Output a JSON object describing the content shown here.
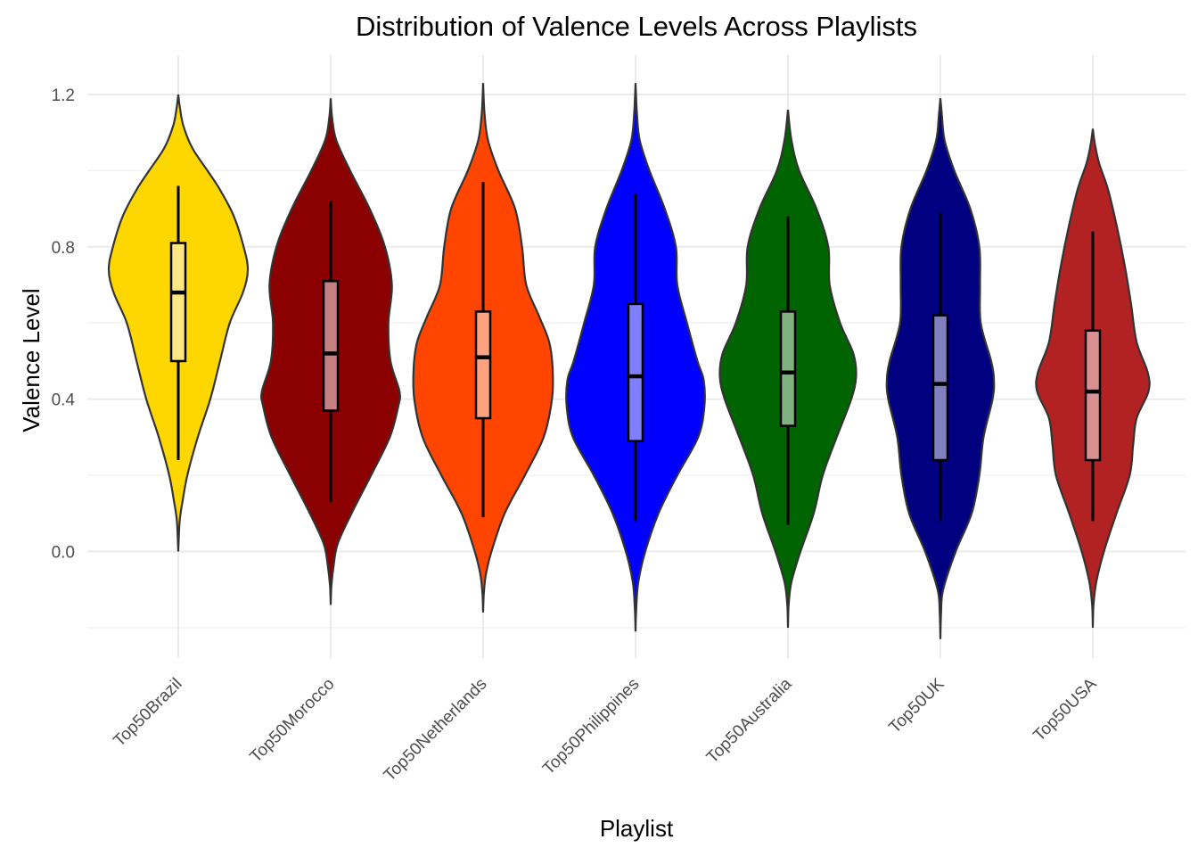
{
  "chart_data": {
    "type": "violin",
    "title": "Distribution of Valence Levels Across Playlists",
    "xlabel": "Playlist",
    "ylabel": "Valence Level",
    "ylim": [
      -0.27,
      1.3
    ],
    "yticks": [
      0.0,
      0.4,
      0.8,
      1.2
    ],
    "ytick_labels": [
      "0.0",
      "0.4",
      "0.8",
      "1.2"
    ],
    "grid": true,
    "legend": "none",
    "categories": [
      "Top50Brazil",
      "Top50Morocco",
      "Top50Netherlands",
      "Top50Philippines",
      "Top50Australia",
      "Top50UK",
      "Top50USA"
    ],
    "series": [
      {
        "category": "Top50Brazil",
        "color": "#FFD700",
        "box_color": "#FFE680",
        "min": 0.0,
        "max": 1.2,
        "whisker_low": 0.24,
        "q1": 0.5,
        "median": 0.68,
        "q3": 0.81,
        "whisker_high": 0.96,
        "density": [
          [
            0.0,
            0.0
          ],
          [
            0.08,
            0.02
          ],
          [
            0.13,
            0.06
          ],
          [
            0.2,
            0.13
          ],
          [
            0.3,
            0.28
          ],
          [
            0.4,
            0.46
          ],
          [
            0.5,
            0.6
          ],
          [
            0.6,
            0.74
          ],
          [
            0.68,
            0.93
          ],
          [
            0.74,
            1.0
          ],
          [
            0.8,
            0.94
          ],
          [
            0.88,
            0.8
          ],
          [
            0.95,
            0.6
          ],
          [
            1.0,
            0.42
          ],
          [
            1.06,
            0.2
          ],
          [
            1.12,
            0.07
          ],
          [
            1.17,
            0.02
          ],
          [
            1.2,
            0.0
          ]
        ]
      },
      {
        "category": "Top50Morocco",
        "color": "#8B0000",
        "box_color": "#C58080",
        "min": -0.14,
        "max": 1.19,
        "whisker_low": 0.13,
        "q1": 0.37,
        "median": 0.52,
        "q3": 0.71,
        "whisker_high": 0.92,
        "density": [
          [
            -0.14,
            0.0
          ],
          [
            -0.09,
            0.01
          ],
          [
            -0.04,
            0.04
          ],
          [
            0.02,
            0.1
          ],
          [
            0.1,
            0.3
          ],
          [
            0.2,
            0.58
          ],
          [
            0.3,
            0.85
          ],
          [
            0.38,
            0.97
          ],
          [
            0.42,
            0.99
          ],
          [
            0.5,
            0.86
          ],
          [
            0.6,
            0.83
          ],
          [
            0.7,
            0.88
          ],
          [
            0.8,
            0.78
          ],
          [
            0.9,
            0.56
          ],
          [
            1.0,
            0.28
          ],
          [
            1.08,
            0.08
          ],
          [
            1.14,
            0.02
          ],
          [
            1.19,
            0.0
          ]
        ]
      },
      {
        "category": "Top50Netherlands",
        "color": "#FF4500",
        "box_color": "#FFA280",
        "min": -0.16,
        "max": 1.23,
        "whisker_low": 0.09,
        "q1": 0.35,
        "median": 0.51,
        "q3": 0.63,
        "whisker_high": 0.97,
        "density": [
          [
            -0.16,
            0.0
          ],
          [
            -0.11,
            0.01
          ],
          [
            -0.06,
            0.04
          ],
          [
            0.0,
            0.12
          ],
          [
            0.1,
            0.31
          ],
          [
            0.2,
            0.6
          ],
          [
            0.3,
            0.87
          ],
          [
            0.4,
            0.99
          ],
          [
            0.48,
            1.0
          ],
          [
            0.55,
            0.95
          ],
          [
            0.62,
            0.8
          ],
          [
            0.7,
            0.62
          ],
          [
            0.8,
            0.56
          ],
          [
            0.9,
            0.46
          ],
          [
            1.0,
            0.22
          ],
          [
            1.08,
            0.07
          ],
          [
            1.15,
            0.02
          ],
          [
            1.23,
            0.0
          ]
        ]
      },
      {
        "category": "Top50Philippines",
        "color": "#0000FF",
        "box_color": "#8080FF",
        "min": -0.21,
        "max": 1.23,
        "whisker_low": 0.08,
        "q1": 0.29,
        "median": 0.46,
        "q3": 0.65,
        "whisker_high": 0.94,
        "density": [
          [
            -0.21,
            0.0
          ],
          [
            -0.15,
            0.01
          ],
          [
            -0.08,
            0.04
          ],
          [
            0.0,
            0.14
          ],
          [
            0.1,
            0.33
          ],
          [
            0.2,
            0.6
          ],
          [
            0.3,
            0.9
          ],
          [
            0.38,
            0.99
          ],
          [
            0.45,
            0.98
          ],
          [
            0.5,
            0.89
          ],
          [
            0.6,
            0.74
          ],
          [
            0.7,
            0.6
          ],
          [
            0.8,
            0.58
          ],
          [
            0.9,
            0.42
          ],
          [
            1.0,
            0.2
          ],
          [
            1.08,
            0.06
          ],
          [
            1.15,
            0.02
          ],
          [
            1.23,
            0.0
          ]
        ]
      },
      {
        "category": "Top50Australia",
        "color": "#006400",
        "box_color": "#80B180",
        "min": -0.2,
        "max": 1.16,
        "whisker_low": 0.07,
        "q1": 0.33,
        "median": 0.47,
        "q3": 0.63,
        "whisker_high": 0.88,
        "density": [
          [
            -0.2,
            0.0
          ],
          [
            -0.14,
            0.01
          ],
          [
            -0.08,
            0.05
          ],
          [
            0.0,
            0.18
          ],
          [
            0.1,
            0.37
          ],
          [
            0.2,
            0.5
          ],
          [
            0.3,
            0.7
          ],
          [
            0.4,
            0.91
          ],
          [
            0.46,
            0.98
          ],
          [
            0.52,
            0.94
          ],
          [
            0.6,
            0.75
          ],
          [
            0.7,
            0.6
          ],
          [
            0.8,
            0.58
          ],
          [
            0.9,
            0.41
          ],
          [
            1.0,
            0.16
          ],
          [
            1.08,
            0.05
          ],
          [
            1.16,
            0.0
          ]
        ]
      },
      {
        "category": "Top50UK",
        "color": "#000080",
        "box_color": "#8080C0",
        "min": -0.23,
        "max": 1.19,
        "whisker_low": 0.08,
        "q1": 0.24,
        "median": 0.44,
        "q3": 0.62,
        "whisker_high": 0.89,
        "density": [
          [
            -0.23,
            0.0
          ],
          [
            -0.16,
            0.01
          ],
          [
            -0.1,
            0.04
          ],
          [
            0.0,
            0.22
          ],
          [
            0.1,
            0.45
          ],
          [
            0.2,
            0.56
          ],
          [
            0.3,
            0.62
          ],
          [
            0.4,
            0.75
          ],
          [
            0.45,
            0.77
          ],
          [
            0.5,
            0.73
          ],
          [
            0.6,
            0.58
          ],
          [
            0.7,
            0.57
          ],
          [
            0.8,
            0.56
          ],
          [
            0.9,
            0.43
          ],
          [
            1.0,
            0.2
          ],
          [
            1.08,
            0.06
          ],
          [
            1.15,
            0.02
          ],
          [
            1.19,
            0.0
          ]
        ]
      },
      {
        "category": "Top50USA",
        "color": "#B22222",
        "box_color": "#D89090",
        "min": -0.2,
        "max": 1.11,
        "whisker_low": 0.08,
        "q1": 0.24,
        "median": 0.42,
        "q3": 0.58,
        "whisker_high": 0.84,
        "density": [
          [
            -0.2,
            0.0
          ],
          [
            -0.14,
            0.01
          ],
          [
            -0.08,
            0.05
          ],
          [
            0.0,
            0.16
          ],
          [
            0.1,
            0.34
          ],
          [
            0.2,
            0.53
          ],
          [
            0.28,
            0.58
          ],
          [
            0.35,
            0.63
          ],
          [
            0.42,
            0.8
          ],
          [
            0.47,
            0.79
          ],
          [
            0.55,
            0.63
          ],
          [
            0.65,
            0.55
          ],
          [
            0.75,
            0.46
          ],
          [
            0.85,
            0.35
          ],
          [
            0.95,
            0.22
          ],
          [
            1.02,
            0.09
          ],
          [
            1.07,
            0.03
          ],
          [
            1.11,
            0.0
          ]
        ]
      }
    ]
  }
}
